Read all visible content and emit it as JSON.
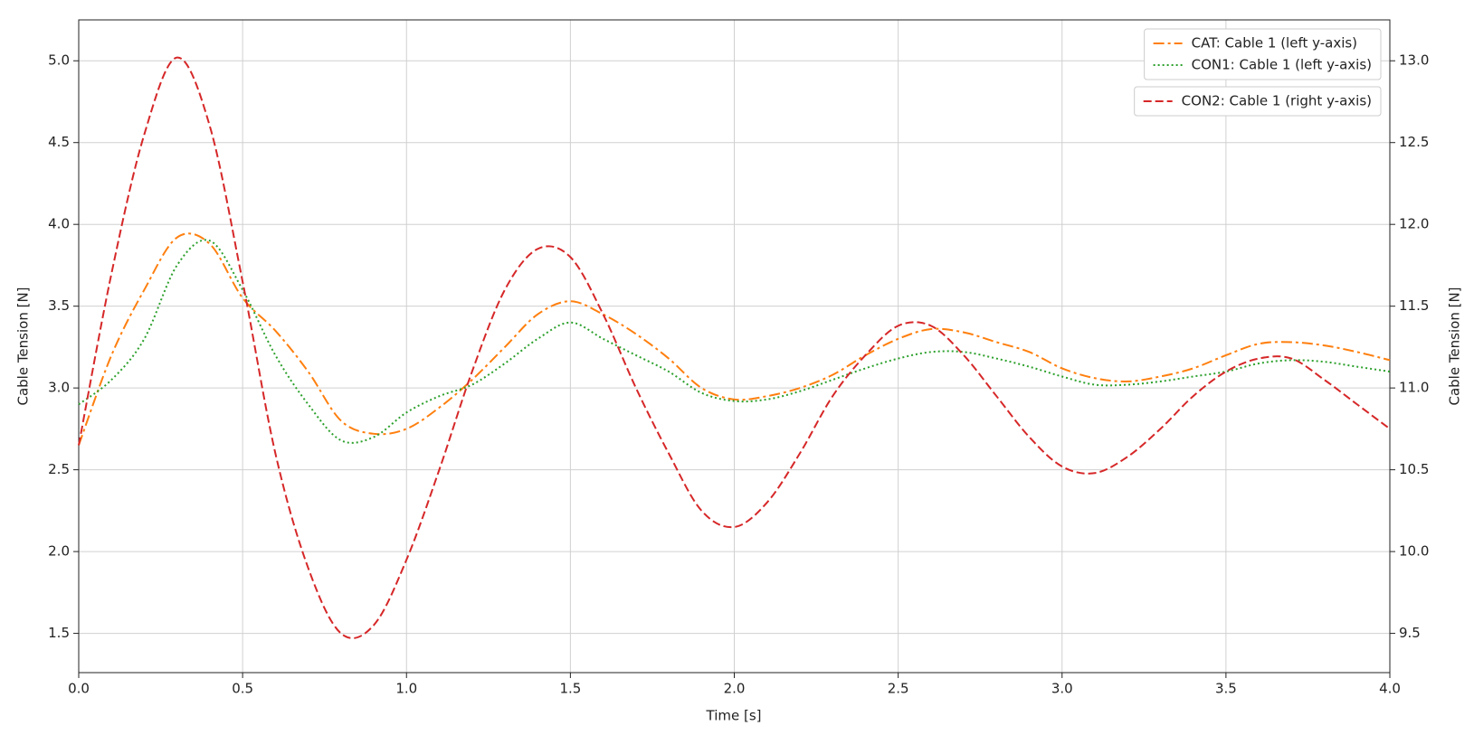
{
  "chart_data": {
    "type": "line",
    "xlabel": "Time [s]",
    "ylabel": "Cable Tension [N]",
    "y2label": "Cable Tension [N]",
    "x": [
      0,
      0.1,
      0.2,
      0.3,
      0.4,
      0.5,
      0.6,
      0.7,
      0.8,
      0.9,
      1.0,
      1.1,
      1.2,
      1.3,
      1.4,
      1.5,
      1.6,
      1.7,
      1.8,
      1.9,
      2.0,
      2.1,
      2.2,
      2.3,
      2.4,
      2.5,
      2.6,
      2.7,
      2.8,
      2.9,
      3.0,
      3.1,
      3.2,
      3.3,
      3.4,
      3.5,
      3.6,
      3.7,
      3.8,
      3.9,
      4.0
    ],
    "series": [
      {
        "name": "CAT: Cable 1 (left y-axis)",
        "color": "#ff7f0e",
        "linestyle": "dash-dot",
        "axis": "y",
        "values": [
          2.65,
          3.2,
          3.6,
          3.92,
          3.88,
          3.55,
          3.35,
          3.1,
          2.8,
          2.72,
          2.75,
          2.88,
          3.05,
          3.25,
          3.45,
          3.53,
          3.45,
          3.33,
          3.18,
          3.0,
          2.93,
          2.95,
          3.0,
          3.08,
          3.2,
          3.3,
          3.36,
          3.34,
          3.28,
          3.22,
          3.12,
          3.06,
          3.04,
          3.07,
          3.12,
          3.2,
          3.27,
          3.28,
          3.26,
          3.22,
          3.17
        ]
      },
      {
        "name": "CON1: Cable 1 (left y-axis)",
        "color": "#2ca02c",
        "linestyle": "dotted",
        "axis": "y",
        "values": [
          2.9,
          3.05,
          3.3,
          3.75,
          3.9,
          3.6,
          3.2,
          2.9,
          2.68,
          2.7,
          2.85,
          2.95,
          3.02,
          3.15,
          3.3,
          3.4,
          3.3,
          3.2,
          3.1,
          2.97,
          2.92,
          2.93,
          2.98,
          3.05,
          3.12,
          3.18,
          3.22,
          3.22,
          3.18,
          3.13,
          3.07,
          3.02,
          3.02,
          3.04,
          3.07,
          3.1,
          3.15,
          3.17,
          3.16,
          3.13,
          3.1
        ]
      },
      {
        "name": "CON2: Cable 1 (right y-axis)",
        "color": "#d62728",
        "linestyle": "dashed",
        "axis": "y2",
        "values": [
          10.65,
          11.7,
          12.55,
          13.02,
          12.6,
          11.65,
          10.6,
          9.9,
          9.5,
          9.55,
          9.95,
          10.5,
          11.1,
          11.6,
          11.85,
          11.8,
          11.45,
          11.0,
          10.6,
          10.25,
          10.15,
          10.3,
          10.6,
          10.95,
          11.2,
          11.38,
          11.38,
          11.2,
          10.95,
          10.7,
          10.52,
          10.48,
          10.58,
          10.75,
          10.95,
          11.1,
          11.18,
          11.18,
          11.05,
          10.9,
          10.75
        ]
      }
    ],
    "xlim": [
      0,
      4
    ],
    "xticks": [
      {
        "value": 0,
        "label": "0.0"
      },
      0.5,
      {
        "value": 1,
        "label": "1.0"
      },
      1.5,
      {
        "value": 2,
        "label": "2.0"
      },
      2.5,
      {
        "value": 3,
        "label": "3.0"
      },
      3.5,
      {
        "value": 4,
        "label": "4.0"
      }
    ],
    "ylim": [
      1.26,
      5.25
    ],
    "yticks": [
      1.5,
      {
        "value": 2,
        "label": "2.0"
      },
      2.5,
      {
        "value": 3,
        "label": "3.0"
      },
      3.5,
      {
        "value": 4,
        "label": "4.0"
      },
      4.5,
      {
        "value": 5,
        "label": "5.0"
      }
    ],
    "y2lim": [
      9.26,
      13.25
    ],
    "y2ticks": [
      9.5,
      {
        "value": 10,
        "label": "10.0"
      },
      10.5,
      {
        "value": 11,
        "label": "11.0"
      },
      11.5,
      {
        "value": 12,
        "label": "12.0"
      },
      12.5,
      {
        "value": 13,
        "label": "13.0"
      }
    ],
    "grid": true,
    "legend": "upper right"
  }
}
